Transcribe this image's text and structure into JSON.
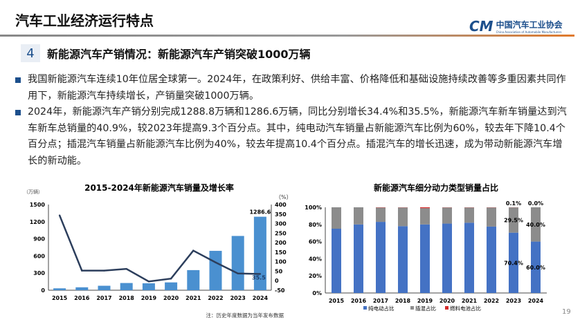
{
  "header": {
    "title": "汽车工业经济运行特点",
    "logo_mark": "CM",
    "logo_cn": "中国汽车工业协会",
    "logo_en": "China Association of Automobile Manufacturers"
  },
  "section": {
    "number": "4",
    "title": "新能源汽车产销情况：新能源汽车产销突破1000万辆"
  },
  "bullets": [
    "我国新能源汽车连续10年位居全球第一。2024年，在政策利好、供给丰富、价格降低和基础设施持续改善等多重因素共同作用下，新能源汽车持续增长，产销量突破1000万辆。",
    "2024年，新能源汽车产销分别完成1288.8万辆和1286.6万辆，同比分别增长34.4%和35.5%，新能源汽车新车销量达到汽车新车总销量的40.9%，较2023年提高9.3个百分点。其中，纯电动汽车销量占新能源汽车比例为60%，较去年下降10.4个百分点；插混汽车销量占新能源汽车比例为40%，较去年提高10.4个百分点。插混汽车的增长迅速，成为带动新能源汽车增长的新动能。"
  ],
  "page_number": "19",
  "chart_data": [
    {
      "type": "bar+line",
      "title": "2015-2024年新能源汽车销量及增长率",
      "ylabel": "（万辆）",
      "y2label": "（%）",
      "categories": [
        "2015",
        "2016",
        "2017",
        "2018",
        "2019",
        "2020",
        "2021",
        "2022",
        "2023",
        "2024"
      ],
      "ylim": [
        0,
        1500
      ],
      "yticks": [
        "0",
        "300",
        "600",
        "900",
        "1200",
        "1500"
      ],
      "y2lim": [
        -50,
        400
      ],
      "y2ticks": [
        "-50",
        "0",
        "50",
        "100",
        "150",
        "200",
        "250",
        "300",
        "350",
        "400"
      ],
      "series": [
        {
          "kind": "bar",
          "values": [
            33,
            51,
            78,
            126,
            121,
            137,
            352,
            689,
            950,
            1286.6
          ],
          "color": "#4a90d0"
        },
        {
          "kind": "line",
          "axis": "right",
          "values": [
            343,
            53,
            53,
            62,
            -4,
            11,
            158,
            96,
            38,
            35.5
          ],
          "color": "#2c3e5c"
        }
      ],
      "data_labels": [
        "1286.6",
        "35.5"
      ],
      "note": "注：历史年度数据为当年发布数据",
      "grid": false
    },
    {
      "type": "stacked-bar",
      "title": "新能源汽车细分动力类型销量占比",
      "categories": [
        "2015",
        "2016",
        "2017",
        "2018",
        "2019",
        "2020",
        "2021",
        "2022",
        "2023",
        "2024"
      ],
      "ylim": [
        0,
        100
      ],
      "yticks": [
        "0%",
        "20%",
        "40%",
        "60%",
        "80%",
        "100%"
      ],
      "series": [
        {
          "name": "纯电动占比",
          "color": "#4472c4",
          "values": [
            75,
            80,
            83,
            78,
            80,
            81,
            82,
            77.5,
            70.4,
            60.0
          ]
        },
        {
          "name": "插混占比",
          "color": "#8c8c8c",
          "values": [
            25,
            20,
            16.7,
            21.8,
            19,
            18.8,
            17.8,
            22.3,
            29.5,
            40.0
          ]
        },
        {
          "name": "燃料电池占比",
          "color": "#d42a2a",
          "values": [
            0,
            0,
            0.3,
            0.2,
            1,
            0.2,
            0.2,
            0.2,
            0.1,
            0.0
          ]
        }
      ],
      "data_labels": {
        "2023": [
          "70.4%",
          "29.5%",
          "0.1%"
        ],
        "2024": [
          "60.0%",
          "40.0%",
          "0.0%"
        ]
      },
      "legend": "bottom",
      "grid": false
    }
  ]
}
